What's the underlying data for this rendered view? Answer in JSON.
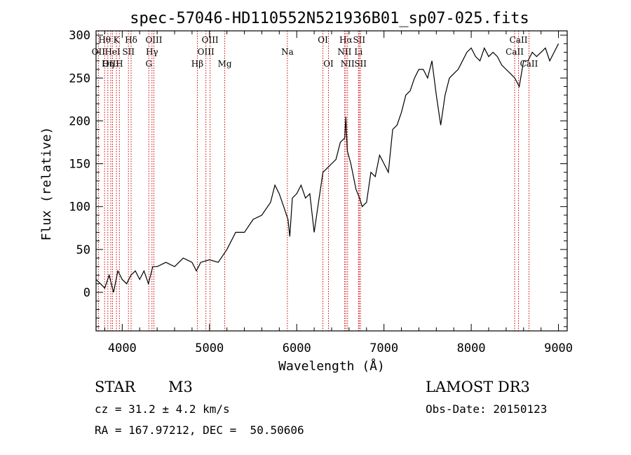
{
  "chart_data": {
    "type": "line",
    "title": "spec-57046-HD110552N521936B01_sp07-025.fits",
    "xlabel": "Wavelength (Å)",
    "ylabel": "Flux (relative)",
    "xlim": [
      3700,
      9100
    ],
    "ylim": [
      -45,
      305
    ],
    "xticks": [
      4000,
      5000,
      6000,
      7000,
      8000,
      9000
    ],
    "yticks": [
      0,
      50,
      100,
      150,
      200,
      250,
      300
    ],
    "series": [
      {
        "x": [
          3700,
          3750,
          3800,
          3850,
          3900,
          3950,
          4000,
          4050,
          4100,
          4150,
          4200,
          4250,
          4300,
          4350,
          4400,
          4500,
          4600,
          4700,
          4800,
          4850,
          4900,
          5000,
          5100,
          5200,
          5300,
          5400,
          5500,
          5600,
          5700,
          5750,
          5800,
          5850,
          5900,
          5920,
          5950,
          6000,
          6050,
          6100,
          6150,
          6200,
          6250,
          6300,
          6350,
          6400,
          6450,
          6500,
          6550,
          6563,
          6580,
          6620,
          6650,
          6680,
          6700,
          6720,
          6750,
          6800,
          6850,
          6900,
          6950,
          7000,
          7050,
          7100,
          7150,
          7200,
          7250,
          7300,
          7350,
          7400,
          7450,
          7500,
          7550,
          7600,
          7650,
          7700,
          7750,
          7800,
          7850,
          7900,
          7950,
          8000,
          8050,
          8100,
          8150,
          8200,
          8250,
          8300,
          8350,
          8400,
          8450,
          8500,
          8550,
          8600,
          8650,
          8700,
          8750,
          8800,
          8850,
          8900,
          8950,
          9000
        ],
        "y": [
          15,
          10,
          5,
          20,
          0,
          25,
          15,
          10,
          20,
          25,
          15,
          25,
          10,
          30,
          30,
          35,
          30,
          40,
          35,
          25,
          35,
          38,
          35,
          50,
          70,
          70,
          85,
          90,
          105,
          125,
          115,
          100,
          85,
          65,
          110,
          115,
          125,
          110,
          115,
          70,
          105,
          140,
          145,
          150,
          155,
          175,
          180,
          205,
          165,
          150,
          135,
          120,
          115,
          110,
          100,
          105,
          140,
          135,
          160,
          150,
          140,
          190,
          195,
          210,
          230,
          235,
          250,
          260,
          260,
          250,
          270,
          230,
          195,
          230,
          250,
          255,
          260,
          270,
          280,
          285,
          275,
          270,
          285,
          275,
          280,
          275,
          265,
          260,
          255,
          250,
          240,
          270,
          270,
          280,
          275,
          280,
          285,
          270,
          280,
          290
        ]
      }
    ],
    "lines": [
      {
        "label": "Hθ",
        "x": 3798,
        "row": 0
      },
      {
        "label": "OII",
        "x": 3727,
        "row": 1
      },
      {
        "label": "OIII",
        "x": 3869,
        "row": 2
      },
      {
        "label": "K",
        "x": 3934,
        "row": 0
      },
      {
        "label": "HeI",
        "x": 3889,
        "row": 1
      },
      {
        "label": "Hη",
        "x": 3835,
        "row": 2
      },
      {
        "label": "Hδ",
        "x": 4102,
        "row": 0
      },
      {
        "label": "SII",
        "x": 4071,
        "row": 1
      },
      {
        "label": "H",
        "x": 3968,
        "row": 2
      },
      {
        "label": "OIII",
        "x": 4363,
        "row": 0
      },
      {
        "label": "Hγ",
        "x": 4341,
        "row": 1
      },
      {
        "label": "G",
        "x": 4305,
        "row": 2
      },
      {
        "label": "OIII",
        "x": 5007,
        "row": 0
      },
      {
        "label": "OIII",
        "x": 4959,
        "row": 1
      },
      {
        "label": "Hβ",
        "x": 4861,
        "row": 2
      },
      {
        "label": "Mg",
        "x": 5175,
        "row": 2
      },
      {
        "label": "Na",
        "x": 5893,
        "row": 1
      },
      {
        "label": "OI",
        "x": 6300,
        "row": 0
      },
      {
        "label": "OI",
        "x": 6364,
        "row": 2
      },
      {
        "label": "Hα",
        "x": 6563,
        "row": 0
      },
      {
        "label": "SII",
        "x": 6716,
        "row": 0
      },
      {
        "label": "NII",
        "x": 6548,
        "row": 1
      },
      {
        "label": "Li",
        "x": 6708,
        "row": 1
      },
      {
        "label": "NII",
        "x": 6583,
        "row": 2
      },
      {
        "label": "SII",
        "x": 6731,
        "row": 2
      },
      {
        "label": "CaII",
        "x": 8542,
        "row": 0
      },
      {
        "label": "CaII",
        "x": 8498,
        "row": 1
      },
      {
        "label": "CaII",
        "x": 8662,
        "row": 2
      }
    ]
  },
  "info": {
    "obj_class": "STAR",
    "subclass": "M3",
    "survey": "LAMOST DR3",
    "cz": "cz = 31.2 ± 4.2 km/s",
    "obs_date": "Obs-Date: 20150123",
    "radec": "RA = 167.97212, DEC =  50.50606"
  }
}
